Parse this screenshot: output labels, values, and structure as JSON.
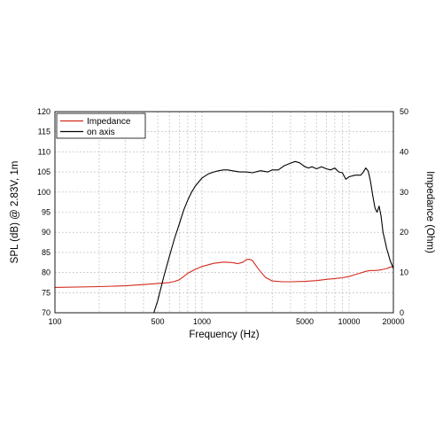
{
  "chart_data": {
    "type": "line",
    "xlabel": "Frequency (Hz)",
    "ylabel_left": "SPL (dB) @ 2.83V, 1m",
    "ylabel_right": "Impedance (Ohm)",
    "x_scale": "log",
    "xlim": [
      100,
      20000
    ],
    "ylim_left": [
      70,
      120
    ],
    "ylim_right": [
      0,
      50
    ],
    "grid": true,
    "legend_position": "top-left",
    "x_ticks": [
      {
        "value": 100,
        "label": "100"
      },
      {
        "value": 500,
        "label": "500"
      },
      {
        "value": 1000,
        "label": "1000"
      },
      {
        "value": 5000,
        "label": "5000"
      },
      {
        "value": 10000,
        "label": "10000"
      },
      {
        "value": 20000,
        "label": "20000"
      }
    ],
    "y_ticks_left": [
      {
        "value": 70,
        "label": "70"
      },
      {
        "value": 75,
        "label": "75"
      },
      {
        "value": 80,
        "label": "80"
      },
      {
        "value": 85,
        "label": "85"
      },
      {
        "value": 90,
        "label": "90"
      },
      {
        "value": 95,
        "label": "95"
      },
      {
        "value": 100,
        "label": "100"
      },
      {
        "value": 105,
        "label": "105"
      },
      {
        "value": 110,
        "label": "110"
      },
      {
        "value": 115,
        "label": "115"
      },
      {
        "value": 120,
        "label": "120"
      }
    ],
    "y_ticks_right": [
      {
        "value": 0,
        "label": "0"
      },
      {
        "value": 10,
        "label": "10"
      },
      {
        "value": 20,
        "label": "20"
      },
      {
        "value": 30,
        "label": "30"
      },
      {
        "value": 40,
        "label": "40"
      },
      {
        "value": 50,
        "label": "50"
      }
    ],
    "series": [
      {
        "name": "Impedance",
        "axis": "right",
        "color": "#d42a1e",
        "x": [
          100,
          200,
          300,
          400,
          500,
          600,
          650,
          700,
          750,
          800,
          900,
          1000,
          1200,
          1400,
          1600,
          1750,
          1900,
          2000,
          2100,
          2200,
          2350,
          2500,
          2700,
          3000,
          3500,
          4000,
          5000,
          6000,
          7000,
          8000,
          9000,
          10000,
          11000,
          12000,
          13000,
          14000,
          15000,
          16000,
          17000,
          18000,
          19000,
          20000
        ],
        "y": [
          6.3,
          6.5,
          6.7,
          7.0,
          7.3,
          7.5,
          7.8,
          8.2,
          9.0,
          9.8,
          10.8,
          11.5,
          12.3,
          12.6,
          12.5,
          12.2,
          12.6,
          13.2,
          13.3,
          13.0,
          11.5,
          10.2,
          8.8,
          7.9,
          7.7,
          7.7,
          7.8,
          8.0,
          8.3,
          8.5,
          8.7,
          9.0,
          9.5,
          9.9,
          10.3,
          10.5,
          10.5,
          10.6,
          10.8,
          11.0,
          11.3,
          11.5
        ]
      },
      {
        "name": "on axis",
        "axis": "left",
        "color": "#000000",
        "x": [
          470,
          500,
          550,
          600,
          650,
          700,
          750,
          800,
          850,
          900,
          1000,
          1100,
          1200,
          1300,
          1400,
          1500,
          1600,
          1800,
          2000,
          2200,
          2500,
          2800,
          3000,
          3300,
          3600,
          4000,
          4300,
          4600,
          5000,
          5300,
          5600,
          6000,
          6500,
          7000,
          7500,
          8000,
          8500,
          9000,
          9500,
          10000,
          11000,
          12000,
          12500,
          13000,
          13500,
          14000,
          14500,
          15000,
          15500,
          16000,
          16500,
          17000,
          17500,
          18000,
          18500,
          19000,
          19500,
          20000
        ],
        "y": [
          70.0,
          73.0,
          79.0,
          84.0,
          88.5,
          92.0,
          95.5,
          98.0,
          100.0,
          101.5,
          103.5,
          104.5,
          105.0,
          105.3,
          105.5,
          105.5,
          105.3,
          105.0,
          105.0,
          104.8,
          105.3,
          105.0,
          105.5,
          105.5,
          106.5,
          107.2,
          107.6,
          107.3,
          106.3,
          106.0,
          106.3,
          105.8,
          106.3,
          105.8,
          105.5,
          106.0,
          105.0,
          104.8,
          103.2,
          103.8,
          104.2,
          104.2,
          105.0,
          106.0,
          105.2,
          102.5,
          99.0,
          96.0,
          95.0,
          96.5,
          94.0,
          90.0,
          88.0,
          86.0,
          84.5,
          83.0,
          82.0,
          81.0
        ]
      }
    ]
  }
}
